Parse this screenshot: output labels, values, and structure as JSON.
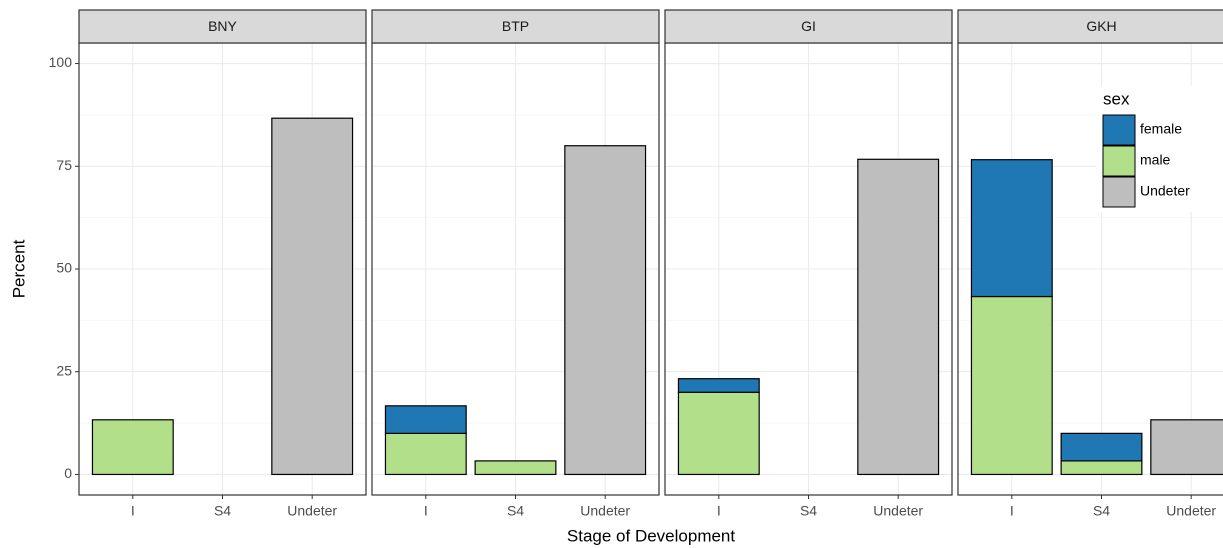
{
  "chart_data": {
    "type": "bar",
    "stacked": true,
    "x_label": "Stage of Development",
    "y_label": "Percent",
    "facets": [
      "BNY",
      "BTP",
      "GI",
      "GKH"
    ],
    "categories": [
      "I",
      "S4",
      "Undeter"
    ],
    "legend_title": "sex",
    "legend_position": "top-right",
    "series": [
      {
        "name": "female",
        "color": "#1f78b4",
        "values": [
          [
            0,
            0,
            0
          ],
          [
            6.7,
            0,
            0
          ],
          [
            3.3,
            0,
            0
          ],
          [
            33.3,
            6.7,
            0
          ]
        ]
      },
      {
        "name": "male",
        "color": "#b2df8a",
        "values": [
          [
            13.3,
            0,
            0
          ],
          [
            10,
            3.3,
            0
          ],
          [
            20,
            0,
            0
          ],
          [
            43.3,
            3.3,
            0
          ]
        ]
      },
      {
        "name": "Undeter",
        "color": "#bebebe",
        "values": [
          [
            0,
            0,
            86.7
          ],
          [
            0,
            0,
            80
          ],
          [
            0,
            0,
            76.7
          ],
          [
            0,
            0,
            13.3
          ]
        ]
      }
    ],
    "ylim": [
      -5,
      105
    ],
    "yticks": [
      0,
      25,
      50,
      75,
      100
    ],
    "grid": true
  }
}
